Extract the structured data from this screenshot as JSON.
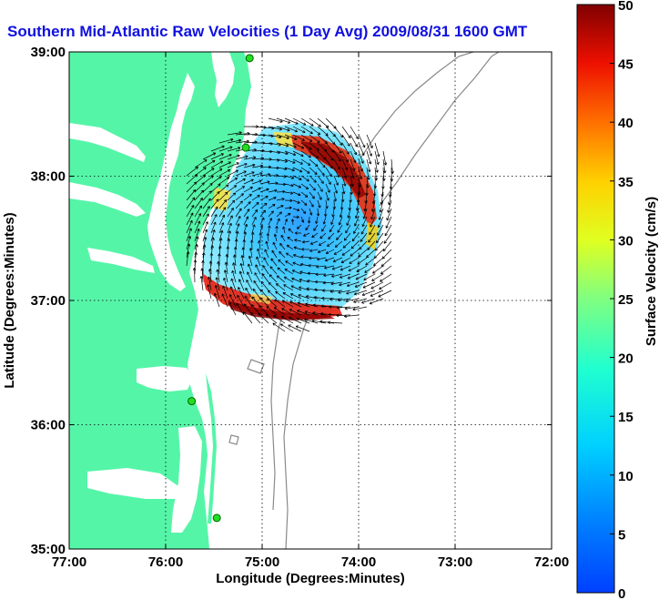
{
  "title": "Southern Mid-Atlantic Raw Velocities (1 Day Avg) 2009/08/31 1600 GMT",
  "map": {
    "xlabel": "Longitude (Degrees:Minutes)",
    "ylabel": "Latitude (Degrees:Minutes)",
    "lon_range": [
      -77,
      -72
    ],
    "lat_range": [
      35,
      39
    ],
    "x_ticks": [
      "77:00",
      "76:00",
      "75:00",
      "74:00",
      "73:00",
      "72:00"
    ],
    "y_ticks": [
      "35:00",
      "36:00",
      "37:00",
      "38:00",
      "39:00"
    ],
    "land_color": "#55f5a8",
    "grid": "dotted"
  },
  "colorbar": {
    "label": "Surface Velocity (cm/s)",
    "range": [
      0,
      50
    ],
    "ticks": [
      "0",
      "5",
      "10",
      "15",
      "20",
      "25",
      "30",
      "35",
      "40",
      "45",
      "50"
    ],
    "colormap": "jet"
  },
  "stations": [
    {
      "lon": -75.13,
      "lat": 38.95
    },
    {
      "lon": -75.17,
      "lat": 38.23
    },
    {
      "lon": -75.73,
      "lat": 36.19
    },
    {
      "lon": -75.47,
      "lat": 35.25
    }
  ]
}
